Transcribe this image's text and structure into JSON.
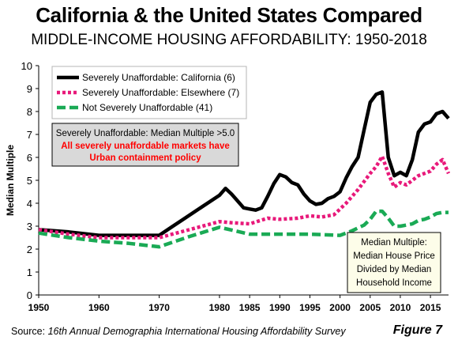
{
  "header": {
    "title": "California & the United States Compared",
    "subtitle": "MIDDLE-INCOME HOUSING AFFORDABILITY: 1950-2018"
  },
  "footer": {
    "source_prefix": "Source: ",
    "source_text": "16th Annual Demographia International Housing Affordability Survey",
    "figure_label": "Figure 7"
  },
  "notes": {
    "red_box_line1": "Severely Unaffordable: Median Multiple >5.0",
    "red_box_line2": "All severely unaffordable markets have",
    "red_box_line3": "Urban containment policy",
    "def_box_line1": "Median Multiple:",
    "def_box_line2": "Median House Price",
    "def_box_line3": "Divided by Median",
    "def_box_line4": "Household Income"
  },
  "colors": {
    "california": "#000000",
    "elsewhere": "#e8197a",
    "not_severe": "#1aaa55",
    "note_red": "#ff0000",
    "note_box_bg": "#d9d9d9",
    "def_box_bg": "#fdfde9"
  },
  "chart_data": {
    "type": "line",
    "title": "California & the United States Compared",
    "subtitle": "MIDDLE-INCOME HOUSING AFFORDABILITY: 1950-2018",
    "xlabel": "",
    "ylabel": "Median Multiple",
    "xlim": [
      1950,
      2018
    ],
    "ylim": [
      0,
      10
    ],
    "x_ticks": [
      1950,
      1960,
      1970,
      1980,
      1985,
      1990,
      1995,
      2000,
      2005,
      2010,
      2015
    ],
    "y_ticks": [
      0,
      1,
      2,
      3,
      4,
      5,
      6,
      7,
      8,
      9,
      10
    ],
    "grid": false,
    "legend_position": "top-left",
    "series": [
      {
        "name": "Severely Unaffordable: California (6)",
        "style": "solid",
        "x": [
          1950,
          1955,
          1960,
          1965,
          1970,
          1972,
          1974,
          1976,
          1978,
          1980,
          1981,
          1982,
          1983,
          1984,
          1985,
          1986,
          1987,
          1988,
          1989,
          1990,
          1991,
          1992,
          1993,
          1994,
          1995,
          1996,
          1997,
          1998,
          1999,
          2000,
          2001,
          2002,
          2003,
          2004,
          2005,
          2006,
          2007,
          2008,
          2009,
          2010,
          2011,
          2012,
          2013,
          2014,
          2015,
          2016,
          2017,
          2018
        ],
        "values": [
          2.85,
          2.75,
          2.6,
          2.6,
          2.6,
          2.95,
          3.3,
          3.65,
          4.0,
          4.35,
          4.65,
          4.4,
          4.1,
          3.8,
          3.75,
          3.7,
          3.8,
          4.3,
          4.85,
          5.25,
          5.15,
          4.9,
          4.8,
          4.4,
          4.1,
          3.95,
          4.0,
          4.2,
          4.3,
          4.5,
          5.1,
          5.6,
          6.0,
          7.2,
          8.4,
          8.75,
          8.85,
          6.0,
          5.2,
          5.35,
          5.2,
          5.9,
          7.1,
          7.45,
          7.55,
          7.9,
          8.0,
          7.7
        ]
      },
      {
        "name": "Severely Unaffordable: Elsewhere (7)",
        "style": "dotted",
        "x": [
          1950,
          1955,
          1960,
          1965,
          1970,
          1975,
          1980,
          1982,
          1985,
          1988,
          1990,
          1993,
          1995,
          1997,
          1999,
          2001,
          2003,
          2005,
          2006,
          2007,
          2008,
          2009,
          2010,
          2011,
          2012,
          2013,
          2014,
          2015,
          2016,
          2017,
          2018
        ],
        "values": [
          2.85,
          2.65,
          2.5,
          2.5,
          2.5,
          2.85,
          3.2,
          3.15,
          3.1,
          3.35,
          3.3,
          3.35,
          3.45,
          3.4,
          3.5,
          4.0,
          4.6,
          5.3,
          5.6,
          6.05,
          5.3,
          4.7,
          4.9,
          4.8,
          5.0,
          5.2,
          5.3,
          5.4,
          5.7,
          5.9,
          5.3
        ]
      },
      {
        "name": "Not Severely Unaffordable (41)",
        "style": "dashed",
        "x": [
          1950,
          1955,
          1960,
          1965,
          1970,
          1975,
          1980,
          1985,
          1990,
          1995,
          2000,
          2002,
          2004,
          2005,
          2006,
          2007,
          2008,
          2009,
          2010,
          2011,
          2012,
          2013,
          2014,
          2015,
          2016,
          2017,
          2018
        ],
        "values": [
          2.7,
          2.5,
          2.35,
          2.25,
          2.1,
          2.55,
          2.95,
          2.65,
          2.65,
          2.65,
          2.6,
          2.8,
          3.05,
          3.3,
          3.65,
          3.65,
          3.35,
          3.0,
          3.0,
          3.05,
          3.1,
          3.25,
          3.3,
          3.4,
          3.55,
          3.6,
          3.6
        ]
      }
    ]
  }
}
